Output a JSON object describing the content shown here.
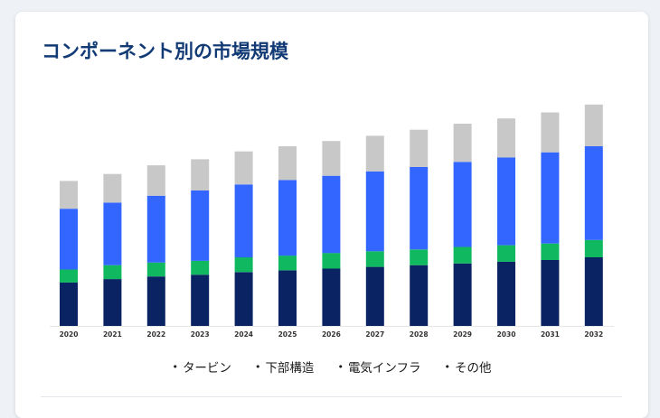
{
  "page": {
    "title": "コンポーネント別の市場規模"
  },
  "chart_data": {
    "type": "bar",
    "stacked": true,
    "title": "コンポーネント別の市場規模",
    "xlabel": "",
    "ylabel": "",
    "categories": [
      "2020",
      "2021",
      "2022",
      "2023",
      "2024",
      "2025",
      "2026",
      "2027",
      "2028",
      "2029",
      "2030",
      "2031",
      "2032"
    ],
    "series": [
      {
        "name": "タービン",
        "color": "#0a2463",
        "values": [
          50,
          54,
          57,
          59,
          62,
          64,
          66,
          68,
          70,
          72,
          74,
          76,
          79
        ]
      },
      {
        "name": "下部構造",
        "color": "#10b860",
        "values": [
          15,
          16,
          16,
          16,
          17,
          17,
          18,
          18,
          18,
          19,
          19,
          19,
          20
        ]
      },
      {
        "name": "電気インフラ",
        "color": "#3366ff",
        "values": [
          70,
          72,
          77,
          81,
          84,
          87,
          89,
          92,
          95,
          98,
          101,
          105,
          108
        ]
      },
      {
        "name": "その他",
        "color": "#c8c8c8",
        "values": [
          32,
          33,
          35,
          36,
          38,
          39,
          40,
          41,
          43,
          44,
          45,
          46,
          48
        ]
      }
    ],
    "ylim": [
      0,
      260
    ],
    "grid": false,
    "legend_position": "bottom"
  }
}
